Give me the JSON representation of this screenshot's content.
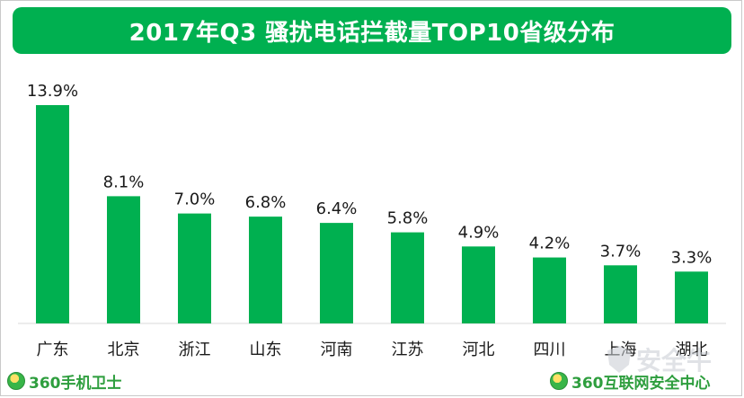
{
  "chart_data": {
    "type": "bar",
    "title": "2017年Q3  骚扰电话拦截量TOP10省级分布",
    "categories": [
      "广东",
      "北京",
      "浙江",
      "山东",
      "河南",
      "江苏",
      "河北",
      "四川",
      "上海",
      "湖北"
    ],
    "values": [
      13.9,
      8.1,
      7.0,
      6.8,
      6.4,
      5.8,
      4.9,
      4.2,
      3.7,
      3.3
    ],
    "value_labels": [
      "13.9%",
      "8.1%",
      "7.0%",
      "6.8%",
      "6.4%",
      "5.8%",
      "4.9%",
      "4.2%",
      "3.7%",
      "3.3%"
    ],
    "xlabel": "",
    "ylabel": "",
    "ylim": [
      0,
      13.9
    ],
    "grid": false,
    "bar_color": "#00b050",
    "title_bg_color": "#00b050"
  },
  "branding": {
    "left": "360手机卫士",
    "right": "360互联网安全中心",
    "watermark": "安全牛"
  }
}
